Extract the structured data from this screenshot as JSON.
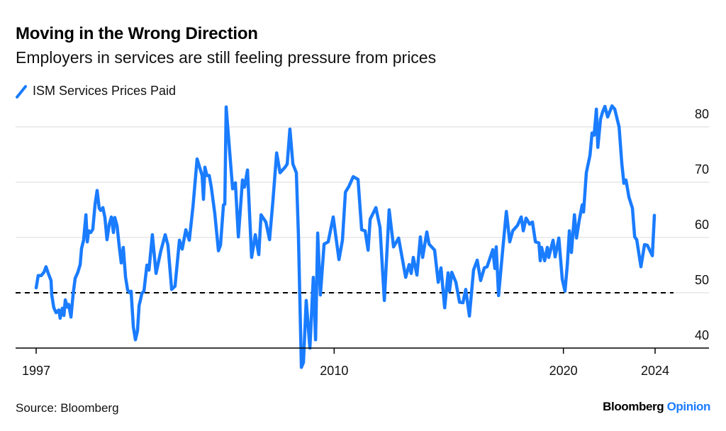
{
  "header": {
    "title": "Moving in the Wrong Direction",
    "subtitle": "Employers in services are still feeling pressure from prices"
  },
  "footer": {
    "source": "Source: Bloomberg",
    "brand_primary": "Bloomberg",
    "brand_secondary": "Opinion"
  },
  "colors": {
    "series": "#1a7cff",
    "brand_accent": "#1a7cff",
    "reference_line": "#000000",
    "gridline": "#e6e6e6",
    "axis": "#000000"
  },
  "chart_data": {
    "type": "line",
    "title": "Moving in the Wrong Direction",
    "subtitle": "Employers in services are still feeling pressure from prices",
    "xlabel": "",
    "ylabel": "",
    "xlim": [
      1997,
      2026.4
    ],
    "ylim": [
      40,
      84
    ],
    "y_ticks": [
      40,
      50,
      60,
      70,
      80
    ],
    "y_tick_labels": [
      "40",
      "50",
      "60",
      "70",
      "80"
    ],
    "y_axis_side": "right",
    "x_ticks": [
      1997,
      2010,
      2020,
      2024
    ],
    "x_tick_labels": [
      "1997",
      "2010",
      "2020",
      "2024"
    ],
    "grid": true,
    "legend_position": "top-left",
    "reference_line": {
      "value": 50,
      "style": "dashed"
    },
    "series": [
      {
        "name": "ISM Services Prices Paid",
        "x": [
          1997.0,
          1997.09,
          1997.22,
          1997.34,
          1997.43,
          1997.53,
          1997.65,
          1997.68,
          1997.77,
          1997.87,
          1997.99,
          1998.05,
          1998.14,
          1998.21,
          1998.27,
          1998.36,
          1998.42,
          1998.52,
          1998.61,
          1998.7,
          1998.82,
          1998.92,
          1998.98,
          1999.07,
          1999.17,
          1999.23,
          1999.29,
          1999.38,
          1999.47,
          1999.57,
          1999.66,
          1999.75,
          1999.81,
          1999.91,
          2000.0,
          2000.09,
          2000.19,
          2000.28,
          2000.37,
          2000.43,
          2000.53,
          2000.62,
          2000.71,
          2000.8,
          2000.9,
          2000.99,
          2001.08,
          2001.14,
          2001.24,
          2001.33,
          2001.42,
          2001.49,
          2001.55,
          2001.61,
          2001.7,
          2001.83,
          2001.92,
          2002.07,
          2002.23,
          2002.44,
          2002.63,
          2002.75,
          2002.91,
          2003.06,
          2003.25,
          2003.37,
          2003.53,
          2003.68,
          2003.84,
          2004.02,
          2004.24,
          2004.3,
          2004.36,
          2004.45,
          2004.55,
          2004.64,
          2004.79,
          2004.95,
          2005.04,
          2005.17,
          2005.23,
          2005.29,
          2005.41,
          2005.57,
          2005.69,
          2005.82,
          2006.0,
          2006.09,
          2006.22,
          2006.4,
          2006.56,
          2006.71,
          2006.81,
          2007.02,
          2007.18,
          2007.33,
          2007.49,
          2007.64,
          2007.86,
          2007.95,
          2008.07,
          2008.2,
          2008.35,
          2008.44,
          2008.57,
          2008.66,
          2008.78,
          2008.94,
          2009.09,
          2009.19,
          2009.28,
          2009.4,
          2009.56,
          2009.74,
          2009.96,
          2010.21,
          2010.36,
          2010.49,
          2010.64,
          2010.83,
          2011.04,
          2011.2,
          2011.35,
          2011.48,
          2011.57,
          2011.82,
          2012.0,
          2012.19,
          2012.4,
          2012.59,
          2012.81,
          2013.12,
          2013.27,
          2013.36,
          2013.45,
          2013.61,
          2013.76,
          2013.86,
          2014.04,
          2014.14,
          2014.38,
          2014.54,
          2014.66,
          2014.82,
          2014.97,
          2015.03,
          2015.13,
          2015.31,
          2015.47,
          2015.62,
          2015.74,
          2015.9,
          2016.08,
          2016.24,
          2016.39,
          2016.55,
          2016.67,
          2016.92,
          2017.01,
          2017.07,
          2017.17,
          2017.35,
          2017.51,
          2017.66,
          2017.79,
          2018.0,
          2018.16,
          2018.25,
          2018.37,
          2018.53,
          2018.65,
          2018.78,
          2018.93,
          2018.99,
          2019.05,
          2019.18,
          2019.3,
          2019.36,
          2019.55,
          2019.64,
          2019.8,
          2019.95,
          2020.07,
          2020.17,
          2020.26,
          2020.35,
          2020.48,
          2020.57,
          2020.69,
          2020.82,
          2020.88,
          2021.0,
          2021.16,
          2021.25,
          2021.34,
          2021.44,
          2021.5,
          2021.62,
          2021.71,
          2021.81,
          2021.93,
          2022.12,
          2022.24,
          2022.43,
          2022.55,
          2022.64,
          2022.73,
          2022.86,
          2023.01,
          2023.11,
          2023.2,
          2023.38,
          2023.54,
          2023.66,
          2023.88,
          2023.97
        ],
        "values": [
          50.9,
          53.1,
          53.1,
          53.7,
          54.7,
          53.5,
          52.2,
          49.6,
          47.3,
          46.4,
          46.9,
          45.4,
          47.2,
          45.9,
          48.7,
          47.4,
          47.9,
          45.6,
          49.7,
          52.6,
          53.7,
          55.1,
          58.0,
          59.5,
          64.1,
          59.2,
          61.2,
          60.9,
          61.5,
          66.0,
          68.5,
          65.3,
          64.9,
          65.4,
          63.6,
          59.6,
          62.4,
          63.7,
          60.9,
          63.6,
          62.1,
          58.6,
          55.4,
          58.2,
          52.8,
          50.5,
          50.0,
          50.3,
          43.8,
          41.5,
          43.1,
          47.7,
          48.7,
          49.9,
          50.3,
          55.0,
          54.1,
          60.5,
          53.5,
          57.6,
          60.5,
          58.6,
          50.6,
          51.2,
          59.5,
          57.9,
          61.4,
          59.5,
          65.6,
          74.2,
          71.2,
          66.9,
          72.7,
          71.2,
          71.2,
          69.1,
          64.4,
          57.6,
          58.6,
          65.9,
          66.0,
          83.6,
          77.2,
          68.8,
          69.9,
          60.1,
          70.4,
          69.1,
          72.2,
          56.4,
          60.5,
          56.9,
          64.1,
          62.8,
          59.6,
          66.7,
          75.3,
          71.7,
          72.7,
          73.3,
          79.6,
          73.3,
          71.7,
          60.5,
          36.5,
          37.4,
          48.6,
          40.0,
          52.8,
          41.5,
          60.8,
          49.6,
          58.8,
          59.2,
          63.7,
          56.0,
          59.5,
          68.2,
          69.2,
          71.0,
          70.5,
          61.4,
          61.2,
          57.7,
          63.3,
          65.4,
          61.8,
          48.6,
          65.0,
          58.3,
          59.9,
          52.8,
          55.1,
          53.5,
          56.4,
          53.2,
          60.1,
          56.4,
          61.0,
          58.8,
          57.7,
          51.9,
          54.5,
          47.3,
          53.6,
          50.3,
          53.7,
          51.9,
          48.3,
          48.2,
          50.6,
          45.8,
          54.1,
          55.9,
          52.2,
          54.5,
          54.7,
          57.8,
          54.4,
          58.3,
          49.5,
          57.7,
          64.7,
          59.2,
          61.2,
          62.2,
          63.7,
          61.2,
          63.5,
          62.4,
          62.8,
          59.2,
          59.0,
          55.8,
          58.2,
          55.8,
          58.2,
          56.4,
          59.5,
          56.5,
          59.9,
          52.4,
          50.3,
          55.1,
          61.2,
          57.3,
          64.1,
          59.9,
          63.1,
          65.9,
          64.6,
          71.7,
          74.9,
          78.9,
          78.5,
          83.2,
          76.3,
          81.4,
          82.7,
          83.7,
          81.8,
          83.8,
          83.2,
          80.0,
          73.3,
          69.8,
          70.4,
          67.3,
          65.3,
          60.1,
          59.6,
          54.7,
          58.7,
          58.6,
          56.7,
          64.0
        ]
      }
    ]
  }
}
